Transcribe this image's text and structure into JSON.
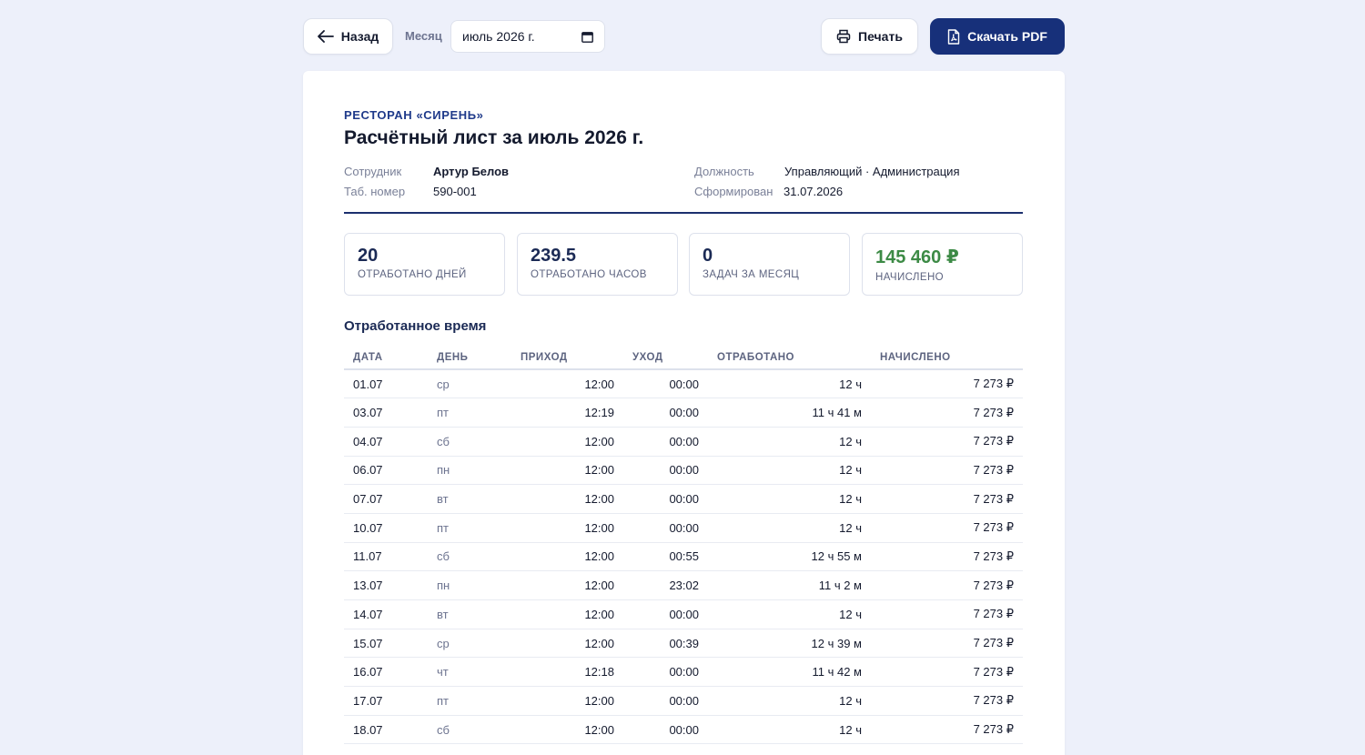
{
  "toolbar": {
    "back_label": "Назад",
    "month_label": "Месяц",
    "month_value": "июль 2026 г.",
    "print_label": "Печать",
    "pdf_label": "Скачать PDF"
  },
  "sheet": {
    "organization": "РЕСТОРАН «СИРЕНЬ»",
    "title": "Расчётный лист за июль 2026 г.",
    "employee_label": "Сотрудник",
    "employee_value": "Артур Белов",
    "tab_label": "Таб. номер",
    "tab_value": "590-001",
    "position_label": "Должность",
    "position_value": "Управляющий · Администрация",
    "generated_label": "Сформирован",
    "generated_value": "31.07.2026"
  },
  "stats": [
    {
      "value": "20",
      "label": "ОТРАБОТАНО ДНЕЙ"
    },
    {
      "value": "239.5",
      "label": "ОТРАБОТАНО ЧАСОВ"
    },
    {
      "value": "0",
      "label": "ЗАДАЧ ЗА МЕСЯЦ"
    },
    {
      "value": "145 460 ₽",
      "label": "НАЧИСЛЕНО"
    }
  ],
  "timesheet": {
    "title": "Отработанное время",
    "headers": [
      "ДАТА",
      "ДЕНЬ",
      "ПРИХОД",
      "УХОД",
      "ОТРАБОТАНО",
      "НАЧИСЛЕНО"
    ],
    "rows": [
      [
        "01.07",
        "ср",
        "12:00",
        "00:00",
        "12 ч",
        "7 273 ₽"
      ],
      [
        "03.07",
        "пт",
        "12:19",
        "00:00",
        "11 ч 41 м",
        "7 273 ₽"
      ],
      [
        "04.07",
        "сб",
        "12:00",
        "00:00",
        "12 ч",
        "7 273 ₽"
      ],
      [
        "06.07",
        "пн",
        "12:00",
        "00:00",
        "12 ч",
        "7 273 ₽"
      ],
      [
        "07.07",
        "вт",
        "12:00",
        "00:00",
        "12 ч",
        "7 273 ₽"
      ],
      [
        "10.07",
        "пт",
        "12:00",
        "00:00",
        "12 ч",
        "7 273 ₽"
      ],
      [
        "11.07",
        "сб",
        "12:00",
        "00:55",
        "12 ч 55 м",
        "7 273 ₽"
      ],
      [
        "13.07",
        "пн",
        "12:00",
        "23:02",
        "11 ч 2 м",
        "7 273 ₽"
      ],
      [
        "14.07",
        "вт",
        "12:00",
        "00:00",
        "12 ч",
        "7 273 ₽"
      ],
      [
        "15.07",
        "ср",
        "12:00",
        "00:39",
        "12 ч 39 м",
        "7 273 ₽"
      ],
      [
        "16.07",
        "чт",
        "12:18",
        "00:00",
        "11 ч 42 м",
        "7 273 ₽"
      ],
      [
        "17.07",
        "пт",
        "12:00",
        "00:00",
        "12 ч",
        "7 273 ₽"
      ],
      [
        "18.07",
        "сб",
        "12:00",
        "00:00",
        "12 ч",
        "7 273 ₽"
      ]
    ]
  }
}
